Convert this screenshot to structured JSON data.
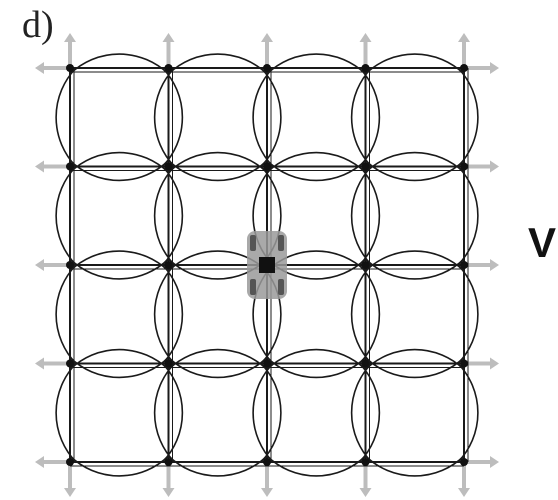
{
  "panel": {
    "label": "d)"
  },
  "edge_text": {
    "partial_char": "V"
  },
  "lattice": {
    "columns": 5,
    "rows": 5,
    "highlight_node": {
      "col": 2,
      "row": 2
    }
  },
  "colors": {
    "line": "#1a1a1a",
    "arrow": "#bdbdbd",
    "highlight": "#9a9a9a",
    "node": "#111111"
  }
}
